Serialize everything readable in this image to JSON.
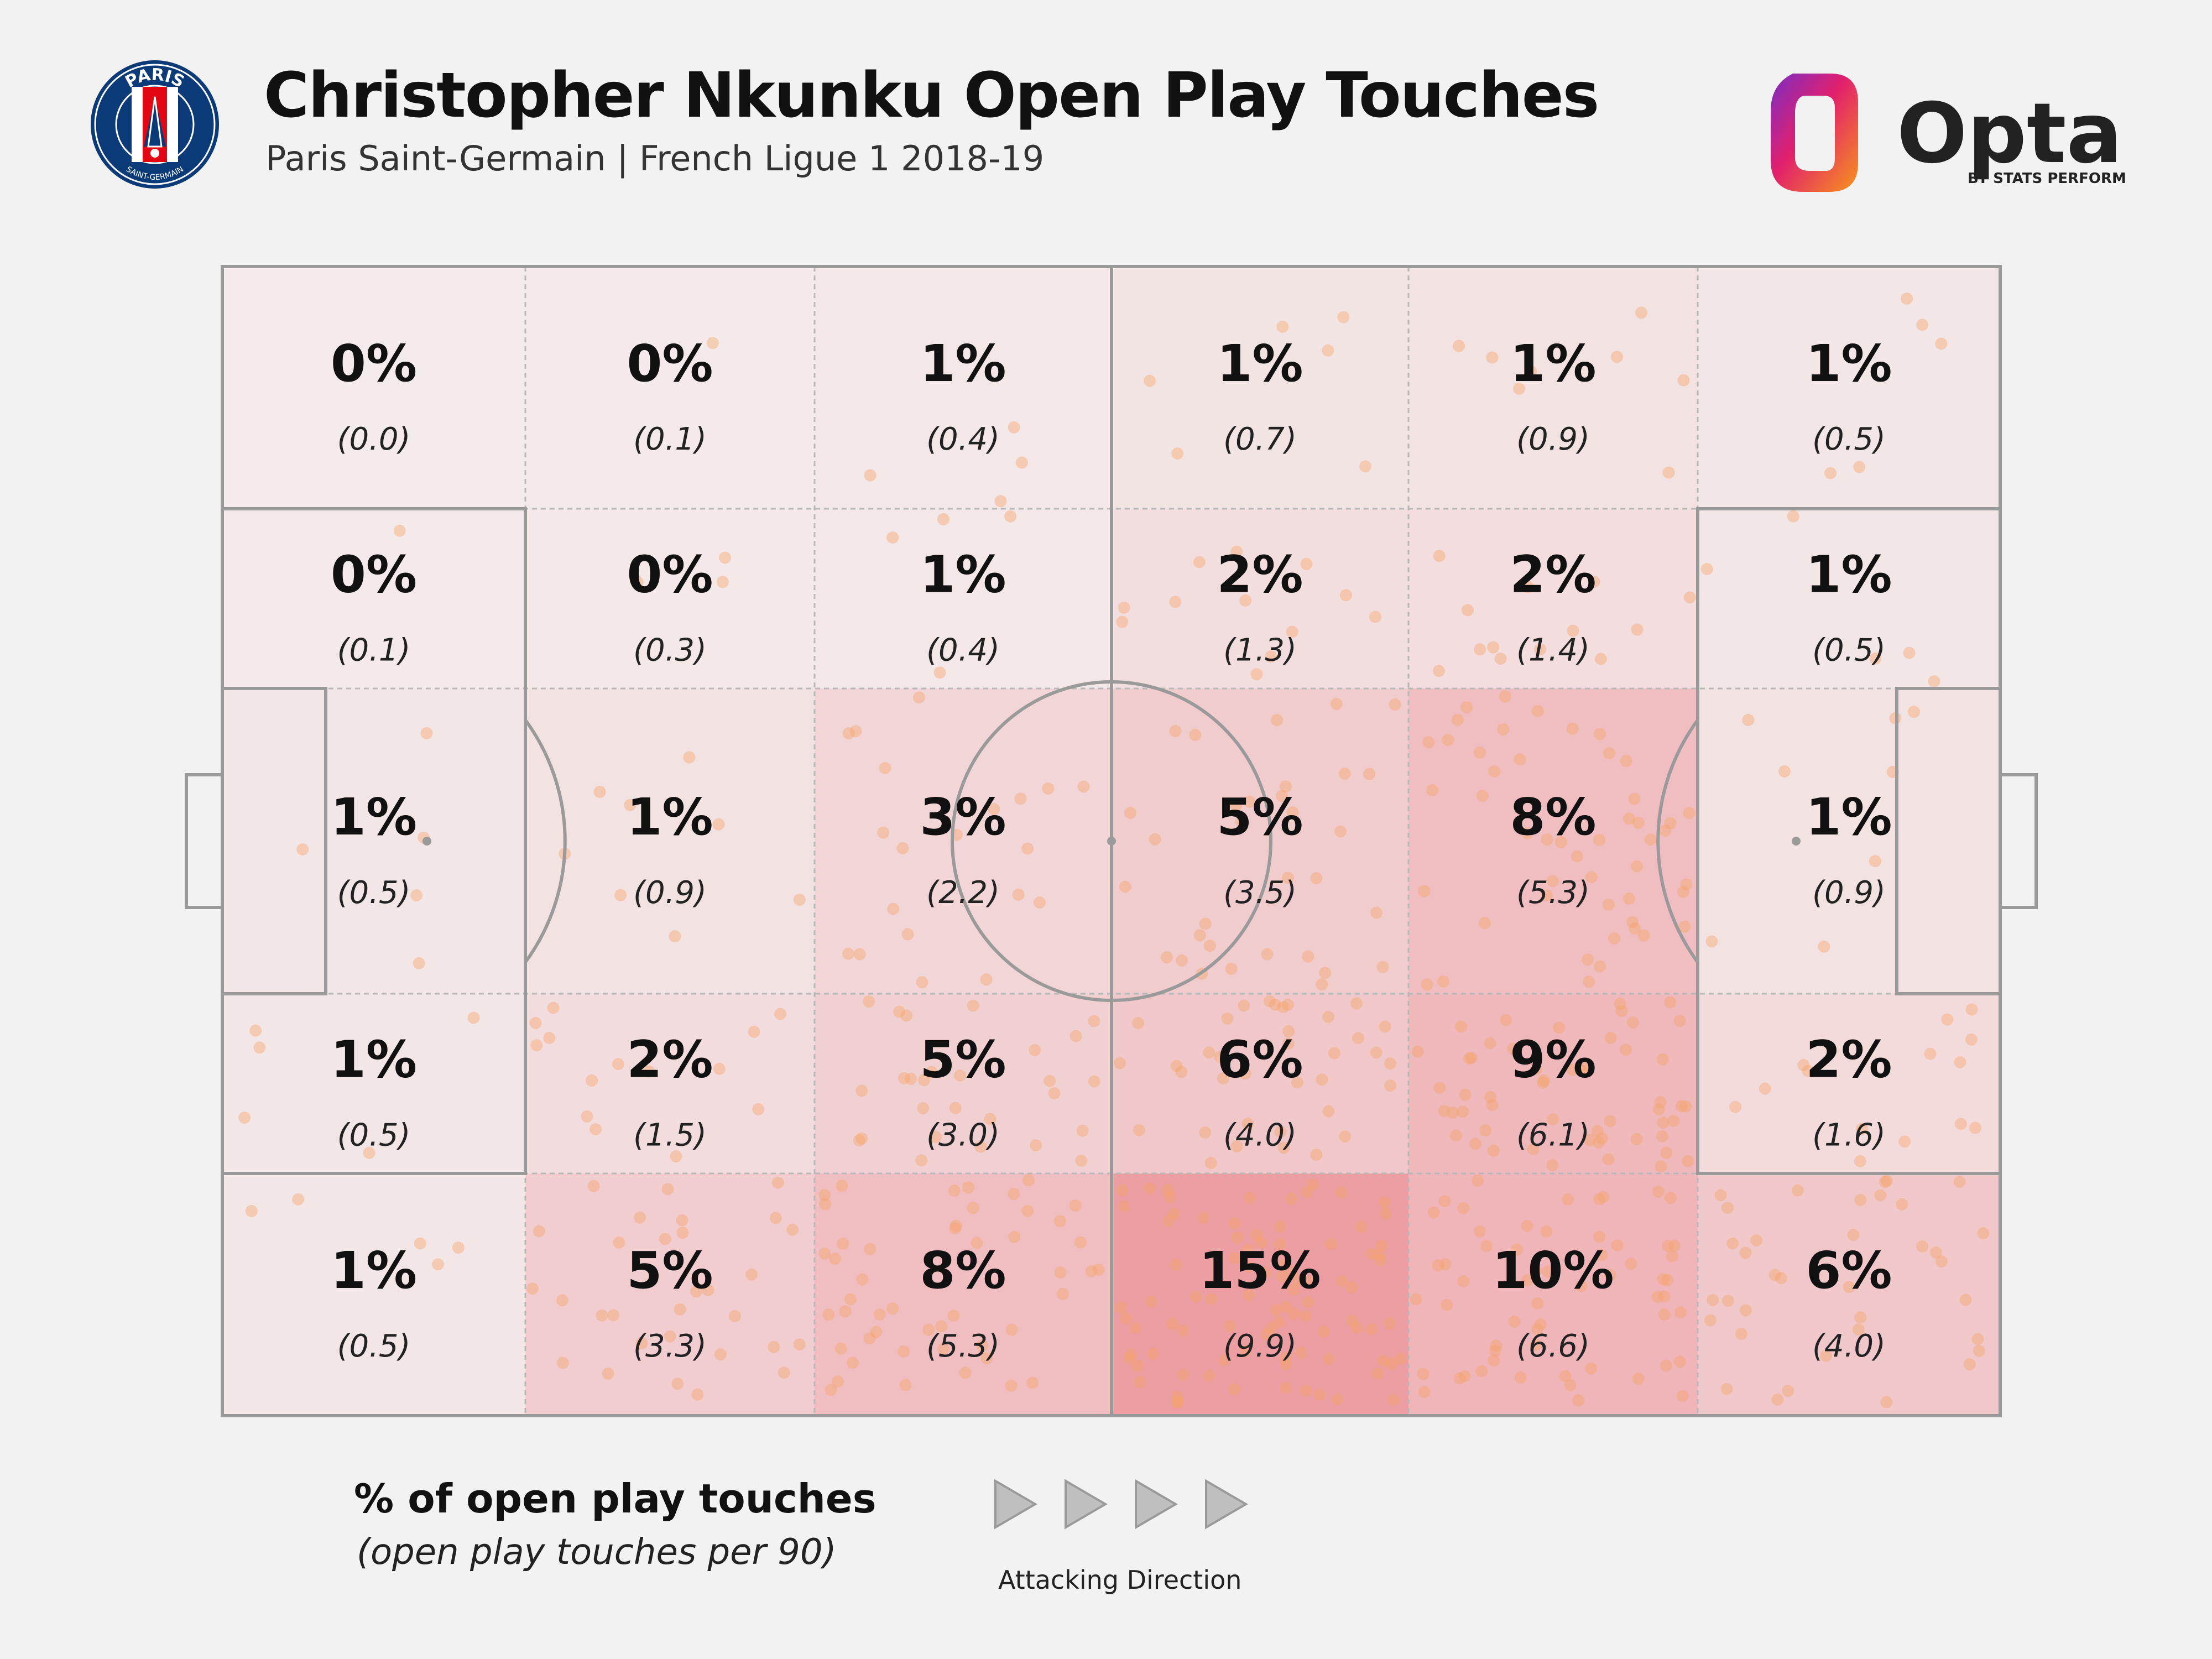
{
  "header": {
    "title": "Christopher Nkunku Open Play Touches",
    "subtitle": "Paris Saint-Germain | French Ligue 1 2018-19"
  },
  "club_badge": {
    "icon": "psg-crest-icon",
    "top_text": "PARIS",
    "bottom_text": "SAINT-GERMAIN"
  },
  "opta": {
    "icon": "opta-logo-icon",
    "name": "Opta",
    "tagline": "BY STATS PERFORM"
  },
  "legend": {
    "title": "% of open play touches",
    "subtitle": "(open play touches per 90)"
  },
  "attacking_direction": {
    "label": "Attacking Direction",
    "icon": "triangle-arrow-icon"
  },
  "colors": {
    "background": "#f2f2f2",
    "pitch_lines": "#9a9a9a",
    "grid_lines": "#b8b8b8",
    "heat_low": "#f4ecec",
    "heat_high": "#ed9ea2",
    "touch_dot": "#f6a264",
    "text": "#111111"
  },
  "chart_data": {
    "type": "heatmap",
    "title": "Christopher Nkunku Open Play Touches",
    "subtitle": "Paris Saint-Germain | French Ligue 1 2018-19",
    "columns": 6,
    "rows": 5,
    "cells": [
      [
        {
          "pct": "0%",
          "p90": "(0.0)",
          "v": 0.0
        },
        {
          "pct": "0%",
          "p90": "(0.1)",
          "v": 0.1
        },
        {
          "pct": "1%",
          "p90": "(0.4)",
          "v": 0.4
        },
        {
          "pct": "1%",
          "p90": "(0.7)",
          "v": 0.7
        },
        {
          "pct": "1%",
          "p90": "(0.9)",
          "v": 0.9
        },
        {
          "pct": "1%",
          "p90": "(0.5)",
          "v": 0.5
        }
      ],
      [
        {
          "pct": "0%",
          "p90": "(0.1)",
          "v": 0.1
        },
        {
          "pct": "0%",
          "p90": "(0.3)",
          "v": 0.3
        },
        {
          "pct": "1%",
          "p90": "(0.4)",
          "v": 0.4
        },
        {
          "pct": "2%",
          "p90": "(1.3)",
          "v": 1.3
        },
        {
          "pct": "2%",
          "p90": "(1.4)",
          "v": 1.4
        },
        {
          "pct": "1%",
          "p90": "(0.5)",
          "v": 0.5
        }
      ],
      [
        {
          "pct": "1%",
          "p90": "(0.5)",
          "v": 0.5
        },
        {
          "pct": "1%",
          "p90": "(0.9)",
          "v": 0.9
        },
        {
          "pct": "3%",
          "p90": "(2.2)",
          "v": 2.2
        },
        {
          "pct": "5%",
          "p90": "(3.5)",
          "v": 3.5
        },
        {
          "pct": "8%",
          "p90": "(5.3)",
          "v": 5.3
        },
        {
          "pct": "1%",
          "p90": "(0.9)",
          "v": 0.9
        }
      ],
      [
        {
          "pct": "1%",
          "p90": "(0.5)",
          "v": 0.5
        },
        {
          "pct": "2%",
          "p90": "(1.5)",
          "v": 1.5
        },
        {
          "pct": "5%",
          "p90": "(3.0)",
          "v": 3.0
        },
        {
          "pct": "6%",
          "p90": "(4.0)",
          "v": 4.0
        },
        {
          "pct": "9%",
          "p90": "(6.1)",
          "v": 6.1
        },
        {
          "pct": "2%",
          "p90": "(1.6)",
          "v": 1.6
        }
      ],
      [
        {
          "pct": "1%",
          "p90": "(0.5)",
          "v": 0.5
        },
        {
          "pct": "5%",
          "p90": "(3.3)",
          "v": 3.3
        },
        {
          "pct": "8%",
          "p90": "(5.3)",
          "v": 5.3
        },
        {
          "pct": "15%",
          "p90": "(9.9)",
          "v": 9.9
        },
        {
          "pct": "10%",
          "p90": "(6.6)",
          "v": 6.6
        },
        {
          "pct": "6%",
          "p90": "(4.0)",
          "v": 4.0
        }
      ]
    ],
    "max_value": 9.9,
    "legend": "% of open play touches (open play touches per 90)",
    "attacking_direction": "left-to-right"
  }
}
